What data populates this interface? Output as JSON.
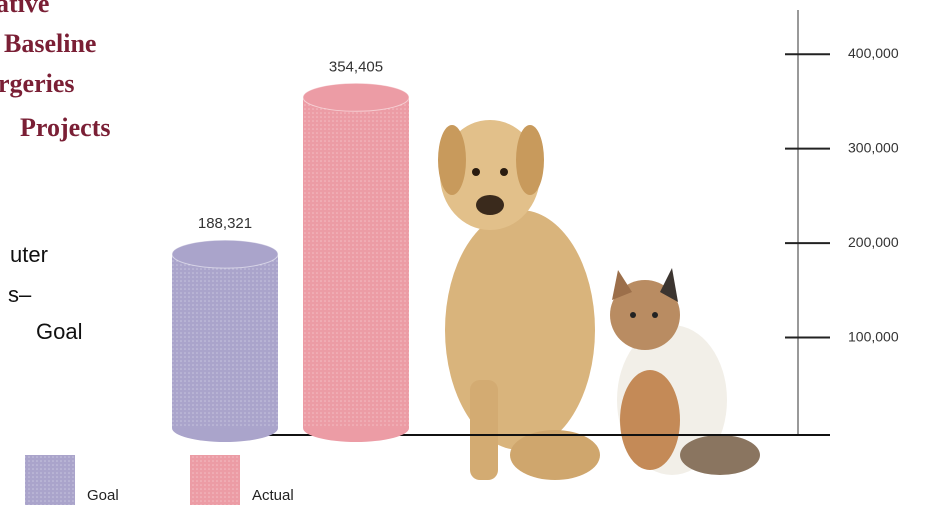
{
  "chart_data": {
    "type": "bar",
    "title_lines": [
      "ative",
      "Baseline",
      "rgeries",
      "Projects"
    ],
    "annotation_lines": [
      "uter",
      "s–",
      "Goal"
    ],
    "categories": [
      "Goal",
      "Actual"
    ],
    "values": [
      188321,
      354405
    ],
    "value_labels": [
      "188,321",
      "354,405"
    ],
    "colors": [
      "#aaa4cb",
      "#ec9ca5"
    ],
    "ylim": [
      0,
      450000
    ],
    "yticks": [
      {
        "value": 100000,
        "label": "100,000"
      },
      {
        "value": 200000,
        "label": "200,000"
      },
      {
        "value": 300000,
        "label": "300,000"
      },
      {
        "value": 400000,
        "label": "400,000"
      }
    ],
    "legend": "bottom-left"
  }
}
